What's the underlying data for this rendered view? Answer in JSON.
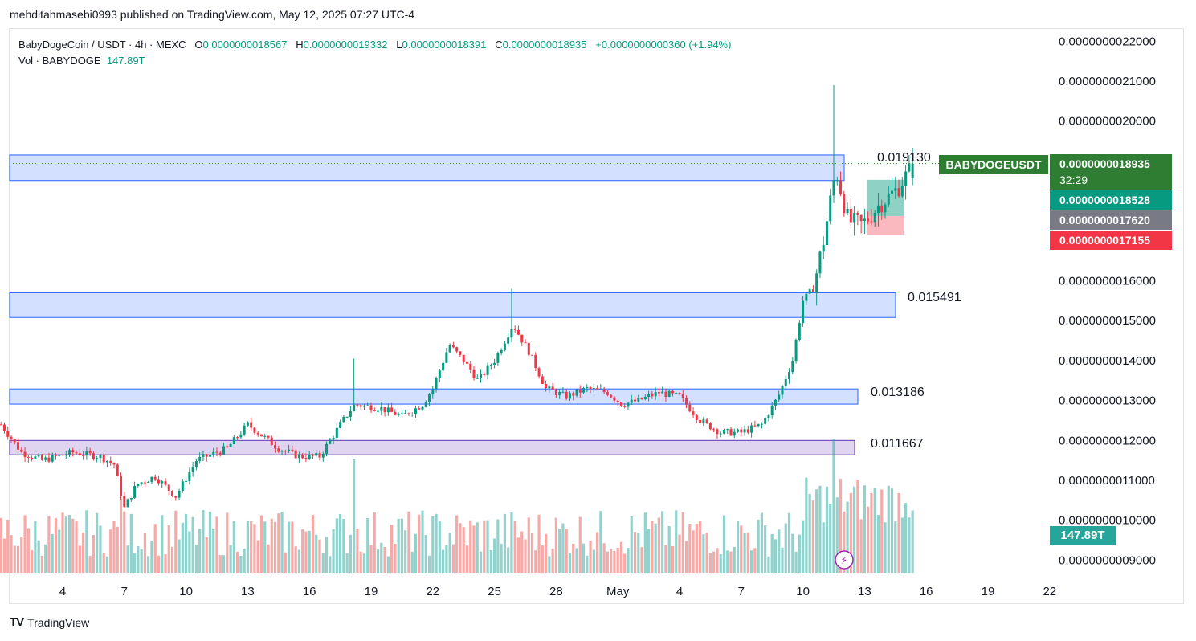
{
  "publisher": "mehditahmasebi0993 published on TradingView.com, May 12, 2025 07:27 UTC-4",
  "legend": {
    "symbol": "BabyDogeCoin / USDT · 4h · MEXC",
    "o_label": "O",
    "o_value": "0.0000000018567",
    "h_label": "H",
    "h_value": "0.0000000019332",
    "l_label": "L",
    "l_value": "0.0000000018391",
    "c_label": "C",
    "c_value": "0.0000000018935",
    "change": "+0.0000000000360 (+1.94%)",
    "vol_label": "Vol · BABYDOGE",
    "vol_value": "147.89T"
  },
  "price_tags": {
    "symbol": "BABYDOGEUSDT",
    "last": "0.0000000018935",
    "timer": "32:29",
    "green": "0.0000000018528",
    "gray": "0.0000000017620",
    "red": "0.0000000017155",
    "volume": "147.89T"
  },
  "zone_labels": [
    "0.019130",
    "0.015491",
    "0.013186",
    "0.011667"
  ],
  "footer": "TradingView",
  "colors": {
    "up": "#089981",
    "down": "#f23645",
    "zone_blue": "#2962ff",
    "zone_purple": "#7e57c2",
    "last_price": "#2e7d32"
  },
  "chart_data": {
    "type": "candlestick",
    "timeframe": "4h",
    "y_ticks": [
      "0.0000000022000",
      "0.0000000021000",
      "0.0000000020000",
      "0.0000000016000",
      "0.0000000015000",
      "0.0000000014000",
      "0.0000000013000",
      "0.0000000012000",
      "0.0000000011000",
      "0.0000000010000",
      "0.0000000009000"
    ],
    "y_tick_values": [
      2.2,
      2.1,
      2.0,
      1.6,
      1.5,
      1.4,
      1.3,
      1.2,
      1.1,
      1.0,
      0.9
    ],
    "y_unit_scale": 1e-09,
    "x_ticks": [
      "4",
      "7",
      "10",
      "13",
      "16",
      "19",
      "22",
      "25",
      "28",
      "May",
      "4",
      "7",
      "10",
      "13",
      "16",
      "19",
      "22"
    ],
    "x_tick_days": [
      4,
      7,
      10,
      13,
      16,
      19,
      22,
      25,
      28,
      31,
      34,
      37,
      40,
      43,
      46,
      49,
      52
    ],
    "zones": [
      {
        "top": 1.915,
        "bottom": 1.851,
        "label": "0.019130",
        "color": "blue"
      },
      {
        "top": 1.57,
        "bottom": 1.508,
        "label": "0.015491",
        "color": "blue"
      },
      {
        "top": 1.329,
        "bottom": 1.291,
        "label": "0.013186",
        "color": "blue"
      },
      {
        "top": 1.2,
        "bottom": 1.164,
        "label": "0.011667",
        "color": "purple"
      }
    ],
    "dotted_last_price": 1.8935,
    "position_box": {
      "entry": 1.762,
      "target": 1.8528,
      "stop": 1.7155
    },
    "anchor_points": [
      {
        "day": 1.0,
        "price": 1.24
      },
      {
        "day": 2.0,
        "price": 1.17
      },
      {
        "day": 3.0,
        "price": 1.15
      },
      {
        "day": 4.5,
        "price": 1.17
      },
      {
        "day": 5.8,
        "price": 1.16
      },
      {
        "day": 6.5,
        "price": 1.14
      },
      {
        "day": 7.0,
        "price": 1.03
      },
      {
        "day": 7.6,
        "price": 1.09
      },
      {
        "day": 8.5,
        "price": 1.11
      },
      {
        "day": 9.5,
        "price": 1.06
      },
      {
        "day": 10.5,
        "price": 1.15
      },
      {
        "day": 12.0,
        "price": 1.18
      },
      {
        "day": 13.0,
        "price": 1.24
      },
      {
        "day": 14.5,
        "price": 1.18
      },
      {
        "day": 15.5,
        "price": 1.16
      },
      {
        "day": 16.5,
        "price": 1.16
      },
      {
        "day": 17.5,
        "price": 1.24
      },
      {
        "day": 18.2,
        "price": 1.29
      },
      {
        "day": 19.5,
        "price": 1.28
      },
      {
        "day": 20.5,
        "price": 1.26
      },
      {
        "day": 21.5,
        "price": 1.29
      },
      {
        "day": 22.0,
        "price": 1.33
      },
      {
        "day": 22.8,
        "price": 1.44
      },
      {
        "day": 23.5,
        "price": 1.4
      },
      {
        "day": 24.2,
        "price": 1.35
      },
      {
        "day": 25.0,
        "price": 1.4
      },
      {
        "day": 25.9,
        "price": 1.49
      },
      {
        "day": 26.7,
        "price": 1.42
      },
      {
        "day": 27.5,
        "price": 1.33
      },
      {
        "day": 28.5,
        "price": 1.31
      },
      {
        "day": 29.5,
        "price": 1.33
      },
      {
        "day": 30.5,
        "price": 1.32
      },
      {
        "day": 31.2,
        "price": 1.29
      },
      {
        "day": 32.0,
        "price": 1.3
      },
      {
        "day": 33.0,
        "price": 1.32
      },
      {
        "day": 34.0,
        "price": 1.31
      },
      {
        "day": 35.0,
        "price": 1.25
      },
      {
        "day": 36.0,
        "price": 1.22
      },
      {
        "day": 37.0,
        "price": 1.22
      },
      {
        "day": 38.0,
        "price": 1.24
      },
      {
        "day": 38.8,
        "price": 1.31
      },
      {
        "day": 39.5,
        "price": 1.4
      },
      {
        "day": 40.0,
        "price": 1.55
      },
      {
        "day": 40.5,
        "price": 1.58
      },
      {
        "day": 41.0,
        "price": 1.7
      },
      {
        "day": 41.6,
        "price": 1.88
      },
      {
        "day": 42.2,
        "price": 1.75
      },
      {
        "day": 42.9,
        "price": 1.74
      },
      {
        "day": 43.7,
        "price": 1.79
      },
      {
        "day": 44.6,
        "price": 1.83
      },
      {
        "day": 45.4,
        "price": 1.8935
      }
    ],
    "volume_spikes": [
      {
        "day": 6.8,
        "volume": 0.55
      },
      {
        "day": 18.1,
        "volume": 0.85
      },
      {
        "day": 25.9,
        "volume": 0.45
      },
      {
        "day": 41.5,
        "volume": 1.0
      },
      {
        "day": 41.8,
        "volume": 0.7
      },
      {
        "day": 45.0,
        "volume": 0.52
      }
    ]
  }
}
